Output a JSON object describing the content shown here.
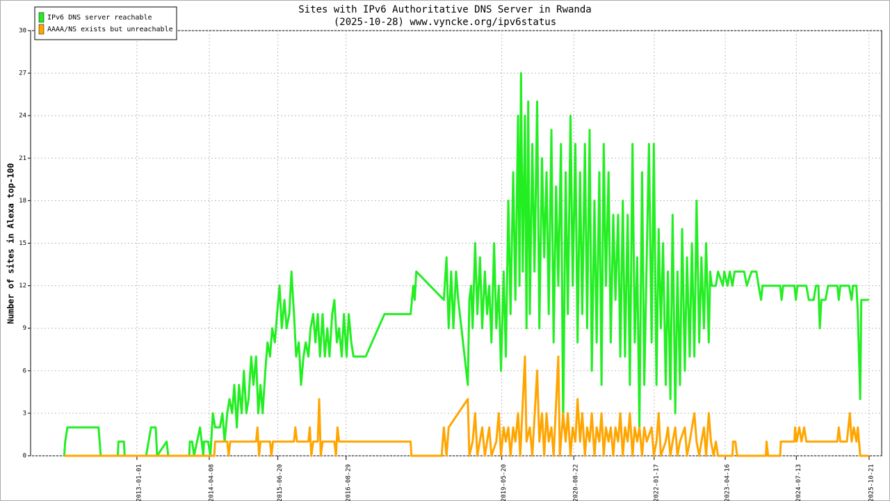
{
  "chart_data": {
    "type": "line",
    "title": "Sites with IPv6 Authoritative DNS Server in Rwanda",
    "subtitle": "(2025-10-28) www.vyncke.org/ipv6status",
    "y_label": "Number of sites in Alexa top-100",
    "xlim": [
      "2011-02-22",
      "2026-01-09"
    ],
    "xticks": [
      "2013-01-01",
      "2014-04-08",
      "2015-06-20",
      "2016-08-29",
      "2019-05-20",
      "2020-08-22",
      "2022-01-17",
      "2023-04-16",
      "2024-07-13",
      "2025-10-21"
    ],
    "ylim": [
      0,
      30
    ],
    "yticks": [
      0,
      3,
      6,
      9,
      12,
      15,
      18,
      21,
      24,
      27,
      30
    ],
    "grid": true,
    "legend": "upper left",
    "series": [
      {
        "name": "IPv6 DNS server reachable",
        "color": "#22ee22",
        "x": [
          "2011-09-25",
          "2011-10-01",
          "2011-10-15",
          "2012-05-01",
          "2012-05-15",
          "2012-09-01",
          "2012-09-05",
          "2012-10-10",
          "2012-10-15",
          "2013-03-01",
          "2013-04-01",
          "2013-05-01",
          "2013-05-10",
          "2013-07-10",
          "2013-07-20",
          "2013-12-01",
          "2013-12-05",
          "2013-12-20",
          "2014-01-01",
          "2014-02-08",
          "2014-03-01",
          "2014-03-05",
          "2014-04-01",
          "2014-04-15",
          "2014-05-01",
          "2014-05-15",
          "2014-06-15",
          "2014-07-01",
          "2014-07-15",
          "2014-08-01",
          "2014-08-15",
          "2014-09-01",
          "2014-09-15",
          "2014-10-01",
          "2014-10-15",
          "2014-11-01",
          "2014-11-15",
          "2014-12-01",
          "2014-12-15",
          "2015-01-01",
          "2015-01-15",
          "2015-02-01",
          "2015-02-15",
          "2015-03-01",
          "2015-03-15",
          "2015-04-01",
          "2015-04-15",
          "2015-05-01",
          "2015-05-15",
          "2015-06-01",
          "2015-06-15",
          "2015-07-01",
          "2015-07-15",
          "2015-08-01",
          "2015-08-15",
          "2015-09-01",
          "2015-09-15",
          "2015-10-01",
          "2015-10-15",
          "2015-11-01",
          "2015-11-15",
          "2015-12-01",
          "2015-12-15",
          "2016-01-01",
          "2016-01-15",
          "2016-02-01",
          "2016-02-15",
          "2016-03-01",
          "2016-03-15",
          "2016-04-01",
          "2016-04-15",
          "2016-05-01",
          "2016-05-15",
          "2016-06-01",
          "2016-06-15",
          "2016-07-01",
          "2016-07-15",
          "2016-08-01",
          "2016-08-15",
          "2016-09-01",
          "2016-09-15",
          "2016-10-01",
          "2016-10-15",
          "2017-01-01",
          "2017-05-01",
          "2017-10-15",
          "2017-11-01",
          "2017-11-10",
          "2017-11-20",
          "2018-05-15",
          "2018-06-01",
          "2018-06-15",
          "2018-07-01",
          "2018-07-15",
          "2018-08-01",
          "2018-08-15",
          "2018-10-15",
          "2018-10-25",
          "2018-11-05",
          "2018-11-15",
          "2018-12-01",
          "2018-12-15",
          "2019-01-01",
          "2019-01-15",
          "2019-02-01",
          "2019-02-15",
          "2019-03-01",
          "2019-03-15",
          "2019-04-01",
          "2019-04-15",
          "2019-05-01",
          "2019-05-15",
          "2019-06-01",
          "2019-06-15",
          "2019-07-01",
          "2019-07-15",
          "2019-08-01",
          "2019-08-15",
          "2019-09-01",
          "2019-09-10",
          "2019-09-20",
          "2019-10-01",
          "2019-10-15",
          "2019-10-25",
          "2019-11-05",
          "2019-11-15",
          "2019-12-01",
          "2019-12-15",
          "2020-01-01",
          "2020-01-15",
          "2020-02-01",
          "2020-02-15",
          "2020-03-01",
          "2020-03-15",
          "2020-04-01",
          "2020-04-15",
          "2020-05-01",
          "2020-05-15",
          "2020-06-01",
          "2020-06-15",
          "2020-07-01",
          "2020-07-15",
          "2020-08-01",
          "2020-08-15",
          "2020-09-01",
          "2020-09-15",
          "2020-10-01",
          "2020-10-15",
          "2020-11-01",
          "2020-11-15",
          "2020-12-01",
          "2020-12-15",
          "2021-01-01",
          "2021-01-15",
          "2021-02-01",
          "2021-02-15",
          "2021-03-01",
          "2021-03-15",
          "2021-04-01",
          "2021-04-15",
          "2021-05-01",
          "2021-05-15",
          "2021-06-01",
          "2021-06-15",
          "2021-07-01",
          "2021-07-15",
          "2021-08-01",
          "2021-08-15",
          "2021-09-01",
          "2021-09-15",
          "2021-10-01",
          "2021-10-15",
          "2021-11-01",
          "2021-11-15",
          "2021-12-15",
          "2022-01-01",
          "2022-01-15",
          "2022-02-01",
          "2022-02-15",
          "2022-03-01",
          "2022-03-15",
          "2022-04-01",
          "2022-04-15",
          "2022-05-01",
          "2022-05-15",
          "2022-06-01",
          "2022-06-15",
          "2022-07-01",
          "2022-07-15",
          "2022-08-01",
          "2022-08-15",
          "2022-09-01",
          "2022-09-15",
          "2022-10-01",
          "2022-10-15",
          "2022-11-01",
          "2022-11-15",
          "2022-12-01",
          "2022-12-15",
          "2023-01-01",
          "2023-01-10",
          "2023-01-20",
          "2023-02-15",
          "2023-03-01",
          "2023-04-01",
          "2023-04-10",
          "2023-05-01",
          "2023-05-15",
          "2023-06-01",
          "2023-06-15",
          "2023-08-15",
          "2023-09-01",
          "2023-10-01",
          "2023-11-01",
          "2023-11-15",
          "2023-12-01",
          "2023-12-10",
          "2024-04-01",
          "2024-04-10",
          "2024-04-20",
          "2024-07-01",
          "2024-07-10",
          "2024-07-20",
          "2024-09-15",
          "2024-10-01",
          "2024-11-01",
          "2024-11-15",
          "2024-12-01",
          "2024-12-10",
          "2024-12-20",
          "2025-01-15",
          "2025-02-01",
          "2025-04-01",
          "2025-04-10",
          "2025-04-20",
          "2025-06-15",
          "2025-07-01",
          "2025-07-10",
          "2025-08-01",
          "2025-08-10",
          "2025-08-25",
          "2025-09-01",
          "2025-10-20"
        ],
        "values": [
          0,
          1,
          2,
          2,
          0,
          0,
          1,
          1,
          0,
          0,
          2,
          2,
          0,
          1,
          0,
          0,
          1,
          1,
          0,
          2,
          0,
          1,
          1,
          0,
          3,
          2,
          2,
          3,
          1,
          3,
          4,
          3,
          5,
          2,
          5,
          3,
          6,
          3,
          4,
          7,
          5,
          7,
          3,
          5,
          3,
          6,
          8,
          7,
          9,
          8,
          10,
          12,
          9,
          11,
          9,
          10,
          13,
          10,
          7,
          8,
          5,
          7,
          8,
          7,
          9,
          10,
          8,
          10,
          7,
          10,
          7,
          9,
          7,
          10,
          11,
          8,
          9,
          7,
          10,
          7,
          10,
          8,
          7,
          7,
          10,
          10,
          12,
          11,
          13,
          11,
          14,
          9,
          13,
          9,
          13,
          11,
          5,
          11,
          12,
          9,
          15,
          10,
          14,
          9,
          13,
          10,
          12,
          8,
          15,
          9,
          12,
          6,
          13,
          7,
          18,
          10,
          20,
          11,
          24,
          12,
          27,
          13,
          24,
          9,
          25,
          10,
          22,
          13,
          25,
          9,
          21,
          14,
          20,
          10,
          23,
          8,
          19,
          12,
          22,
          2,
          20,
          10,
          24,
          12,
          22,
          8,
          20,
          10,
          22,
          9,
          23,
          6,
          18,
          8,
          20,
          5,
          22,
          12,
          20,
          8,
          17,
          11,
          17,
          7,
          18,
          7,
          17,
          5,
          22,
          8,
          14,
          2,
          20,
          5,
          22,
          8,
          22,
          5,
          16,
          9,
          15,
          5,
          13,
          4,
          17,
          3,
          13,
          5,
          16,
          6,
          14,
          7,
          15,
          7,
          18,
          8,
          14,
          9,
          15,
          8,
          13,
          12,
          12,
          13,
          12,
          13,
          12,
          13,
          12,
          13,
          13,
          12,
          13,
          13,
          12,
          11,
          12,
          12,
          11,
          12,
          12,
          11,
          12,
          12,
          11,
          11,
          12,
          12,
          9,
          11,
          11,
          12,
          12,
          11,
          12,
          12,
          11,
          12,
          12,
          10,
          4,
          11,
          11
        ]
      },
      {
        "name": "AAAA/NS exists but unreachable",
        "color": "#ffa500",
        "x": [
          "2011-09-25",
          "2014-05-10",
          "2014-05-15",
          "2014-08-01",
          "2014-08-10",
          "2014-08-20",
          "2015-02-01",
          "2015-02-10",
          "2015-02-20",
          "2015-03-01",
          "2015-05-01",
          "2015-05-10",
          "2015-05-20",
          "2015-10-01",
          "2015-10-10",
          "2015-10-20",
          "2016-01-01",
          "2016-01-10",
          "2016-01-20",
          "2016-02-01",
          "2016-03-01",
          "2016-03-10",
          "2016-03-20",
          "2016-04-01",
          "2016-06-15",
          "2016-06-25",
          "2016-07-05",
          "2016-07-15",
          "2017-10-15",
          "2017-10-20",
          "2018-05-01",
          "2018-05-15",
          "2018-06-01",
          "2018-06-15",
          "2018-10-15",
          "2018-10-25",
          "2018-11-15",
          "2018-12-01",
          "2018-12-15",
          "2019-01-15",
          "2019-02-01",
          "2019-03-01",
          "2019-03-15",
          "2019-04-15",
          "2019-05-01",
          "2019-05-15",
          "2019-06-01",
          "2019-06-15",
          "2019-07-01",
          "2019-07-15",
          "2019-08-01",
          "2019-08-15",
          "2019-09-01",
          "2019-09-15",
          "2019-10-15",
          "2019-10-25",
          "2019-11-15",
          "2019-12-01",
          "2020-01-01",
          "2020-01-15",
          "2020-02-01",
          "2020-02-15",
          "2020-03-01",
          "2020-03-15",
          "2020-04-01",
          "2020-04-15",
          "2020-05-15",
          "2020-05-25",
          "2020-06-15",
          "2020-07-01",
          "2020-07-15",
          "2020-08-01",
          "2020-08-15",
          "2020-09-01",
          "2020-09-15",
          "2020-10-01",
          "2020-10-15",
          "2020-11-01",
          "2020-11-15",
          "2020-12-01",
          "2020-12-15",
          "2021-01-01",
          "2021-01-15",
          "2021-02-01",
          "2021-02-15",
          "2021-03-01",
          "2021-03-15",
          "2021-04-01",
          "2021-04-15",
          "2021-05-01",
          "2021-05-15",
          "2021-06-01",
          "2021-06-15",
          "2021-07-01",
          "2021-07-15",
          "2021-08-01",
          "2021-08-15",
          "2021-09-01",
          "2021-09-15",
          "2021-10-01",
          "2021-10-15",
          "2021-11-01",
          "2021-11-15",
          "2021-12-01",
          "2022-01-01",
          "2022-01-15",
          "2022-02-01",
          "2022-02-15",
          "2022-03-01",
          "2022-04-01",
          "2022-04-15",
          "2022-05-01",
          "2022-05-15",
          "2022-06-01",
          "2022-06-15",
          "2022-07-01",
          "2022-08-01",
          "2022-08-15",
          "2022-09-01",
          "2022-10-01",
          "2022-10-15",
          "2022-11-01",
          "2022-11-15",
          "2022-12-01",
          "2022-12-15",
          "2023-01-01",
          "2023-01-15",
          "2023-02-01",
          "2023-02-15",
          "2023-03-01",
          "2023-06-01",
          "2023-06-05",
          "2023-06-20",
          "2023-07-01",
          "2024-01-01",
          "2024-01-05",
          "2024-01-15",
          "2024-04-01",
          "2024-04-05",
          "2024-07-01",
          "2024-07-05",
          "2024-07-15",
          "2024-08-01",
          "2024-08-15",
          "2024-09-01",
          "2024-09-15",
          "2025-04-01",
          "2025-04-10",
          "2025-04-20",
          "2025-06-01",
          "2025-06-20",
          "2025-07-01",
          "2025-07-15",
          "2025-08-01",
          "2025-08-10",
          "2025-08-25",
          "2025-10-20"
        ],
        "values": [
          0,
          0,
          1,
          1,
          0,
          1,
          1,
          2,
          0,
          1,
          1,
          0,
          1,
          1,
          2,
          1,
          1,
          2,
          0,
          1,
          1,
          4,
          0,
          1,
          1,
          0,
          2,
          1,
          1,
          0,
          0,
          2,
          0,
          2,
          4,
          0,
          1,
          3,
          0,
          2,
          0,
          2,
          0,
          1,
          3,
          0,
          2,
          1,
          2,
          0,
          2,
          1,
          3,
          0,
          7,
          1,
          2,
          0,
          6,
          1,
          3,
          0,
          3,
          1,
          2,
          0,
          7,
          0,
          3,
          1,
          3,
          0,
          2,
          1,
          4,
          1,
          3,
          0,
          2,
          1,
          3,
          0,
          2,
          1,
          3,
          0,
          2,
          1,
          2,
          0,
          2,
          1,
          3,
          0,
          2,
          1,
          3,
          0,
          2,
          1,
          2,
          0,
          2,
          1,
          2,
          0,
          1,
          3,
          0,
          1,
          2,
          0,
          1,
          2,
          0,
          1,
          2,
          0,
          1,
          3,
          1,
          0,
          1,
          2,
          0,
          3,
          1,
          0,
          1,
          0,
          0,
          1,
          1,
          0,
          0,
          1,
          0,
          0,
          1,
          1,
          2,
          1,
          2,
          1,
          2,
          1,
          1,
          2,
          1,
          1,
          3,
          1,
          2,
          1,
          2,
          0,
          0
        ]
      }
    ]
  }
}
